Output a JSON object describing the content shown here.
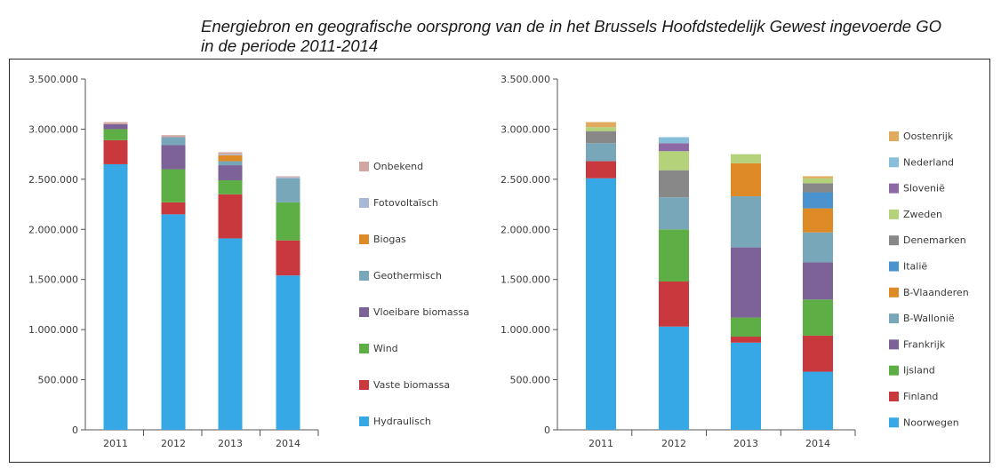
{
  "title_line1": "Energiebron en geografische oorsprong van de in het Brussels Hoofdstedelijk Gewest ingevoerde GO",
  "title_line2": "in de periode 2011-2014",
  "chart_data": [
    {
      "type": "bar",
      "stacked": true,
      "categories": [
        "2011",
        "2012",
        "2013",
        "2014"
      ],
      "ylim": [
        0,
        3500000
      ],
      "yticks": [
        "0",
        "500.000",
        "1.000.000",
        "1.500.000",
        "2.000.000",
        "2.500.000",
        "3.000.000",
        "3.500.000"
      ],
      "legend_position": "right",
      "series": [
        {
          "name": "Hydraulisch",
          "color": "#37a8e6",
          "values": [
            2650000,
            2150000,
            1910000,
            1540000
          ]
        },
        {
          "name": "Vaste biomassa",
          "color": "#c8383c",
          "values": [
            240000,
            120000,
            440000,
            350000
          ]
        },
        {
          "name": "Wind",
          "color": "#5daf45",
          "values": [
            110000,
            330000,
            140000,
            380000
          ]
        },
        {
          "name": "Vloeibare biomassa",
          "color": "#7d6298",
          "values": [
            50000,
            240000,
            150000,
            0
          ]
        },
        {
          "name": "Geothermisch",
          "color": "#79a7ba",
          "values": [
            0,
            80000,
            40000,
            240000
          ]
        },
        {
          "name": "Biogas",
          "color": "#de8a26",
          "values": [
            0,
            0,
            60000,
            0
          ]
        },
        {
          "name": "Fotovoltaïsch",
          "color": "#a8b9d8",
          "values": [
            0,
            0,
            10000,
            10000
          ]
        },
        {
          "name": "Onbekend",
          "color": "#d1a8a1",
          "values": [
            20000,
            20000,
            20000,
            10000
          ]
        }
      ]
    },
    {
      "type": "bar",
      "stacked": true,
      "categories": [
        "2011",
        "2012",
        "2013",
        "2014"
      ],
      "ylim": [
        0,
        3500000
      ],
      "yticks": [
        "0",
        "500.000",
        "1.000.000",
        "1.500.000",
        "2.000.000",
        "2.500.000",
        "3.000.000",
        "3.500.000"
      ],
      "legend_position": "right",
      "series": [
        {
          "name": "Noorwegen",
          "color": "#37a8e6",
          "values": [
            2510000,
            1030000,
            870000,
            580000
          ]
        },
        {
          "name": "Finland",
          "color": "#c8383c",
          "values": [
            170000,
            450000,
            60000,
            360000
          ]
        },
        {
          "name": "Ijsland",
          "color": "#5daf45",
          "values": [
            0,
            520000,
            190000,
            360000
          ]
        },
        {
          "name": "Frankrijk",
          "color": "#7d6298",
          "values": [
            0,
            0,
            700000,
            370000
          ]
        },
        {
          "name": "B-Wallonië",
          "color": "#79a7ba",
          "values": [
            180000,
            320000,
            510000,
            300000
          ]
        },
        {
          "name": "B-Vlaanderen",
          "color": "#de8a26",
          "values": [
            0,
            0,
            330000,
            240000
          ]
        },
        {
          "name": "Italië",
          "color": "#4b93cf",
          "values": [
            0,
            0,
            0,
            160000
          ]
        },
        {
          "name": "Denemarken",
          "color": "#888888",
          "values": [
            120000,
            270000,
            0,
            90000
          ]
        },
        {
          "name": "Zweden",
          "color": "#b3d27a",
          "values": [
            40000,
            190000,
            90000,
            50000
          ]
        },
        {
          "name": "Slovenië",
          "color": "#8d6aa6",
          "values": [
            0,
            80000,
            0,
            0
          ]
        },
        {
          "name": "Nederland",
          "color": "#87bfda",
          "values": [
            0,
            60000,
            0,
            0
          ]
        },
        {
          "name": "Oostenrijk",
          "color": "#e2aa5e",
          "values": [
            50000,
            0,
            0,
            20000
          ]
        }
      ]
    }
  ]
}
